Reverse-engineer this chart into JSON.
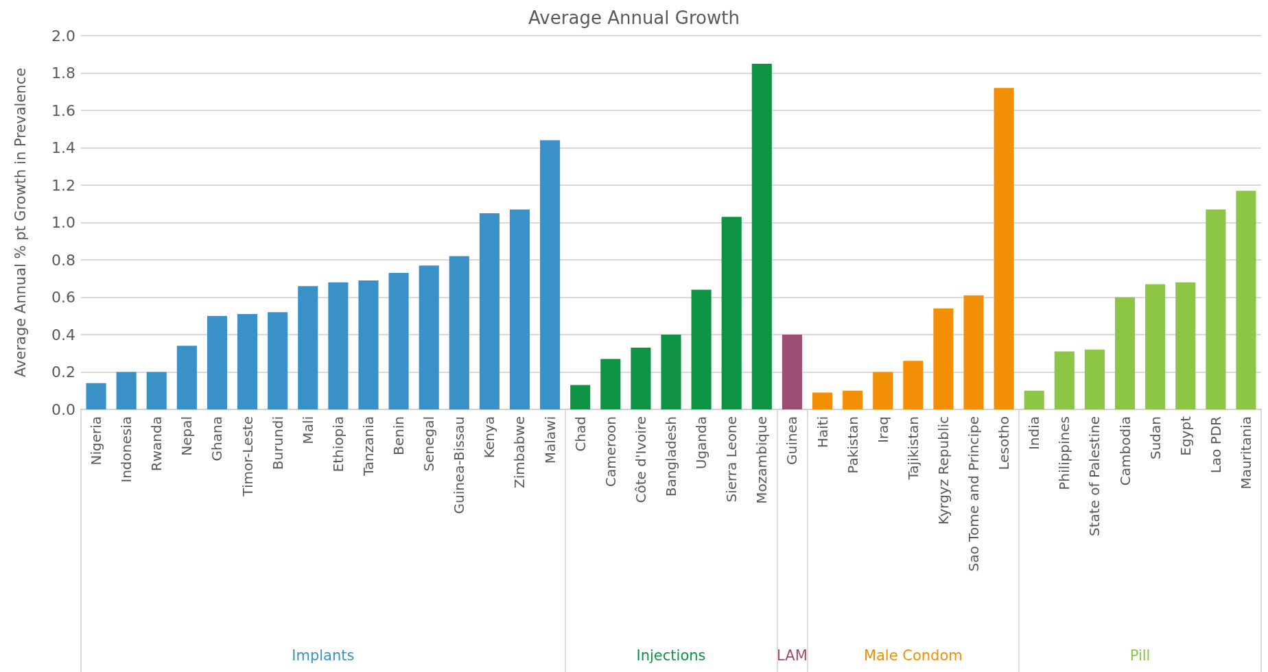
{
  "chart_data": {
    "type": "bar",
    "title": "Average Annual Growth",
    "ylabel": "Average Annual % pt Growth in Prevalence",
    "categories": [
      "Nigeria",
      "Indonesia",
      "Rwanda",
      "Nepal",
      "Ghana",
      "Timor-Leste",
      "Burundi",
      "Mali",
      "Ethiopia",
      "Tanzania",
      "Benin",
      "Senegal",
      "Guinea-Bissau",
      "Kenya",
      "Zimbabwe",
      "Malawi",
      "Chad",
      "Cameroon",
      "Côte d'Ivoire",
      "Bangladesh",
      "Uganda",
      "Sierra Leone",
      "Mozambique",
      "Guinea",
      "Haiti",
      "Pakistan",
      "Iraq",
      "Tajikistan",
      "Kyrgyz Republic",
      "Sao Tome and Principe",
      "Lesotho",
      "India",
      "Philippines",
      "State of Palestine",
      "Cambodia",
      "Sudan",
      "Egypt",
      "Lao PDR",
      "Mauritania"
    ],
    "series": [
      {
        "name": "Implants",
        "color": "#3a91c8",
        "values": [
          0.14,
          0.2,
          0.2,
          0.34,
          0.5,
          0.51,
          0.52,
          0.66,
          0.68,
          0.69,
          0.73,
          0.77,
          0.82,
          1.05,
          1.07,
          1.44,
          null,
          null,
          null,
          null,
          null,
          null,
          null,
          null,
          null,
          null,
          null,
          null,
          null,
          null,
          null,
          null,
          null,
          null,
          null,
          null,
          null,
          null,
          null
        ]
      },
      {
        "name": "Injections",
        "color": "#0e9344",
        "values": [
          null,
          null,
          null,
          null,
          null,
          null,
          null,
          null,
          null,
          null,
          null,
          null,
          null,
          null,
          null,
          null,
          0.13,
          0.27,
          0.33,
          0.4,
          0.64,
          1.03,
          1.85,
          null,
          null,
          null,
          null,
          null,
          null,
          null,
          null,
          null,
          null,
          null,
          null,
          null,
          null,
          null,
          null
        ]
      },
      {
        "name": "LAM",
        "color": "#9a4f72",
        "values": [
          null,
          null,
          null,
          null,
          null,
          null,
          null,
          null,
          null,
          null,
          null,
          null,
          null,
          null,
          null,
          null,
          null,
          null,
          null,
          null,
          null,
          null,
          null,
          0.4,
          null,
          null,
          null,
          null,
          null,
          null,
          null,
          null,
          null,
          null,
          null,
          null,
          null,
          null,
          null
        ]
      },
      {
        "name": "Male Condom",
        "color": "#f28f05",
        "values": [
          null,
          null,
          null,
          null,
          null,
          null,
          null,
          null,
          null,
          null,
          null,
          null,
          null,
          null,
          null,
          null,
          null,
          null,
          null,
          null,
          null,
          null,
          null,
          null,
          0.09,
          0.1,
          0.2,
          0.26,
          0.54,
          0.61,
          1.72,
          null,
          null,
          null,
          null,
          null,
          null,
          null,
          null
        ]
      },
      {
        "name": "Pill",
        "color": "#8dc645",
        "values": [
          null,
          null,
          null,
          null,
          null,
          null,
          null,
          null,
          null,
          null,
          null,
          null,
          null,
          null,
          null,
          null,
          null,
          null,
          null,
          null,
          null,
          null,
          null,
          null,
          null,
          null,
          null,
          null,
          null,
          null,
          null,
          0.1,
          0.31,
          0.32,
          0.6,
          0.67,
          0.68,
          1.07,
          1.17
        ]
      }
    ],
    "ylim": [
      0,
      2
    ],
    "yticks": [
      {
        "value": 0,
        "label": "0.0"
      },
      0.2,
      0.4,
      0.6,
      0.8,
      {
        "value": 1,
        "label": "1.0"
      },
      1.2,
      1.4,
      1.6,
      1.8,
      {
        "value": 2,
        "label": "2.0"
      }
    ],
    "grid": "y",
    "legend": false
  }
}
